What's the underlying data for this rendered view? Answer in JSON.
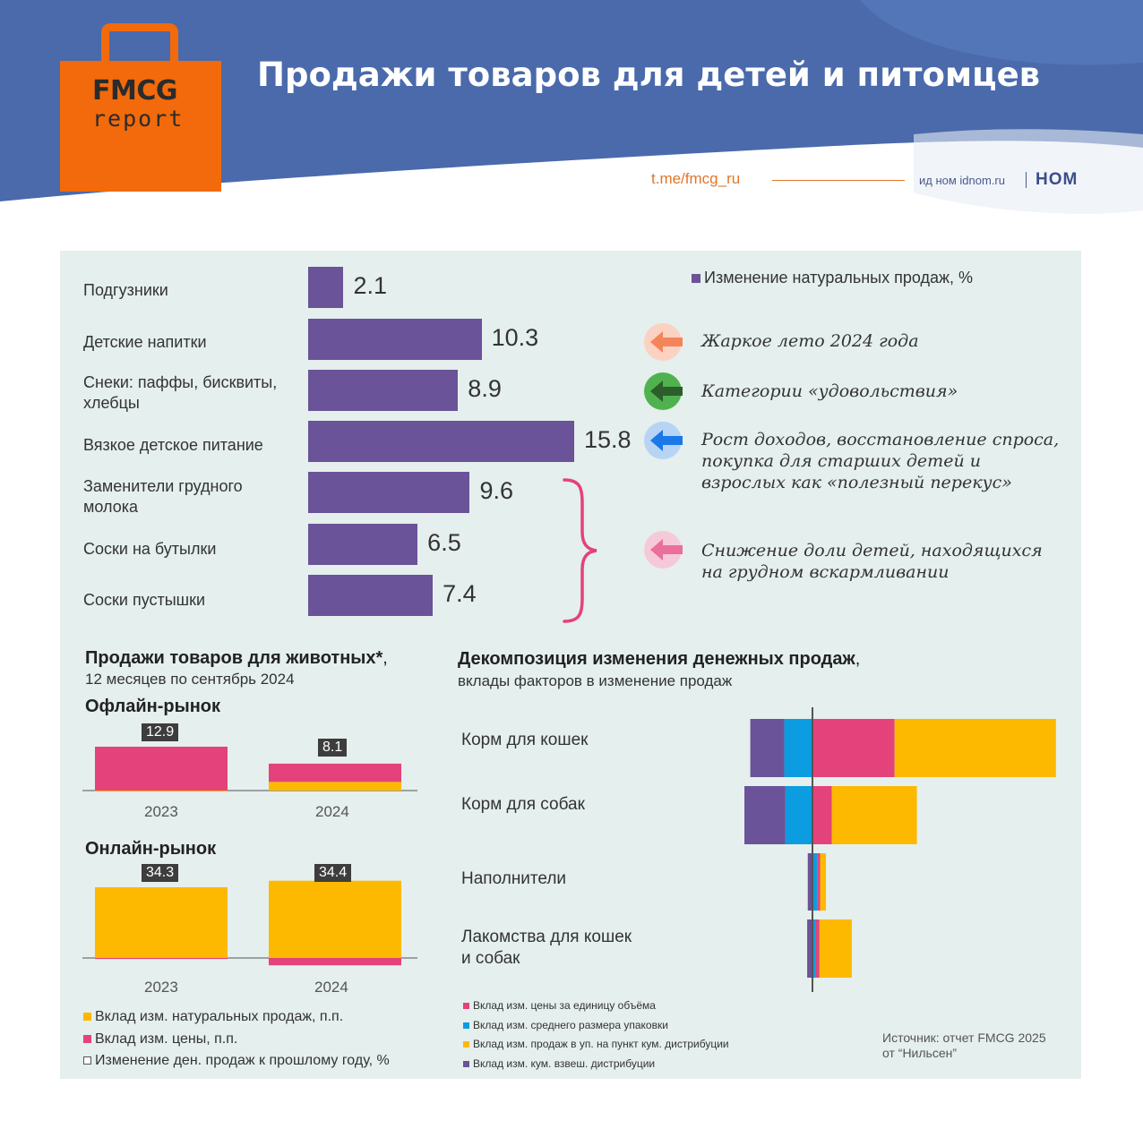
{
  "header": {
    "title": "Продажи товаров для детей и питомцев",
    "logo_line1": "FMCG",
    "logo_line2": "report",
    "telegram": "t.me/fmcg_ru",
    "publisher": "ид ном idnom.ru",
    "brand": "НОМ"
  },
  "colors": {
    "purple": "#6a5398",
    "pink": "#e4427a",
    "yellow": "#fdb900",
    "blue": "#0c9ce0",
    "header_blue": "#4a6aab",
    "orange": "#f26a0b"
  },
  "chart_data": [
    {
      "type": "bar",
      "orientation": "horizontal",
      "legend": "Изменение натуральных продаж, %",
      "categories": [
        "Подгузники",
        "Детские напитки",
        "Снеки: паффы, бисквиты, хлебцы",
        "Вязкое детское питание",
        "Заменители грудного молока",
        "Соски на бутылки",
        "Соски пустышки"
      ],
      "values": [
        2.1,
        10.3,
        8.9,
        15.8,
        9.6,
        6.5,
        7.4
      ],
      "value_labels": [
        "2.1",
        "10.3",
        "8.9",
        "15.8",
        "9.6",
        "6.5",
        "7.4"
      ],
      "annotations": [
        {
          "text": "Жаркое лето 2024 года",
          "arrow_color": "#f4855a"
        },
        {
          "text": "Категории «удовольствия»",
          "arrow_color": "#3a8a3a"
        },
        {
          "text": "Рост доходов, восстановление спроса, покупка для старших детей и взрослых как «полезный перекус»",
          "arrow_color": "#1a78e8"
        },
        {
          "text": "Снижение доли детей, находящихся на грудном вскармливании",
          "arrow_color": "#ea6f9a"
        }
      ]
    },
    {
      "type": "bar",
      "title": "Продажи товаров для животных*",
      "subtitle": "12 месяцев по сентябрь 2024",
      "panels": [
        {
          "name": "Офлайн-рынок",
          "categories": [
            "2023",
            "2024"
          ],
          "total_change": [
            12.9,
            8.1
          ],
          "series": [
            {
              "name": "Вклад изм. натуральных продаж, п.п.",
              "values": [
                -0.3,
                2.6
              ]
            },
            {
              "name": "Вклад изм. цены, п.п.",
              "values": [
                13.2,
                5.5
              ]
            }
          ]
        },
        {
          "name": "Онлайн-рынок",
          "categories": [
            "2023",
            "2024"
          ],
          "total_change": [
            34.3,
            34.4
          ],
          "series": [
            {
              "name": "Вклад изм. натуральных продаж, п.п.",
              "values": [
                34.8,
                38.0
              ]
            },
            {
              "name": "Вклад изм. цены, п.п.",
              "values": [
                -0.5,
                -3.6
              ]
            }
          ]
        }
      ],
      "legend": [
        {
          "label": "Вклад изм. натуральных продаж, п.п.",
          "color": "#fdb900",
          "marker": "filled"
        },
        {
          "label": "Вклад изм. цены, п.п.",
          "color": "#e4427a",
          "marker": "filled"
        },
        {
          "label": "Изменение ден. продаж к прошлому году, %",
          "color": "#ffffff",
          "marker": "outline"
        }
      ]
    },
    {
      "type": "bar",
      "orientation": "horizontal",
      "stacked": true,
      "title": "Декомпозиция изменения денежных продаж",
      "subtitle": "вклады факторов в изменение продаж",
      "categories": [
        "Корм для кошек",
        "Корм для собак",
        "Наполнители",
        "Лакомства для кошек и собак"
      ],
      "series": [
        {
          "name": "Вклад изм. кум. взвеш. дистрибуции",
          "color": "#6a5398",
          "values": [
            -5.8,
            -7.0,
            -0.8,
            -0.9
          ]
        },
        {
          "name": "Вклад изм. среднего размера упаковки",
          "color": "#0c9ce0",
          "values": [
            -4.8,
            -4.6,
            0.8,
            0.6
          ]
        },
        {
          "name": "Вклад изм. цены за единицу объёма",
          "color": "#e4427a",
          "values": [
            14.0,
            3.3,
            0.5,
            0.6
          ]
        },
        {
          "name": "Вклад изм. продаж в уп. на пункт кум. дистрибуции",
          "color": "#fdb900",
          "values": [
            27.5,
            14.5,
            1.0,
            5.5
          ]
        }
      ],
      "legend": [
        "Вклад изм. цены за единицу объёма",
        "Вклад изм. среднего размера упаковки",
        "Вклад изм. продаж в уп. на пункт кум. дистрибуции",
        "Вклад изм. кум. взвеш. дистрибуции"
      ]
    }
  ],
  "labels": {
    "pets_title": "Продажи товаров для животных*",
    "pets_title_comma": ",",
    "pets_subtitle": "12 месяцев по сентябрь 2024",
    "offline": "Офлайн-рынок",
    "online": "Онлайн-рынок",
    "year_2023": "2023",
    "year_2024": "2024",
    "decomp_title": "Декомпозиция изменения денежных продаж",
    "decomp_title_comma": ",",
    "decomp_subtitle": "вклады факторов в изменение продаж",
    "cat_line1": "Лакомства для кошек",
    "cat_line2": "и собак",
    "snacks_line1": "Снеки: паффы, бисквиты,",
    "snacks_line2": "хлебцы",
    "formula_line1": "Заменители грудного",
    "formula_line2": "молока",
    "ann3_line1": "Рост доходов, восстановление спроса,",
    "ann3_line2": "покупка для старших детей и",
    "ann3_line3": "взрослых как «полезный перекус»",
    "ann4_line1": "Снижение доли детей, находящихся",
    "ann4_line2": "на грудном вскармливании"
  },
  "source": {
    "line1": "Источник: отчет FMCG 2025",
    "line2": "от “Нильсен”"
  }
}
